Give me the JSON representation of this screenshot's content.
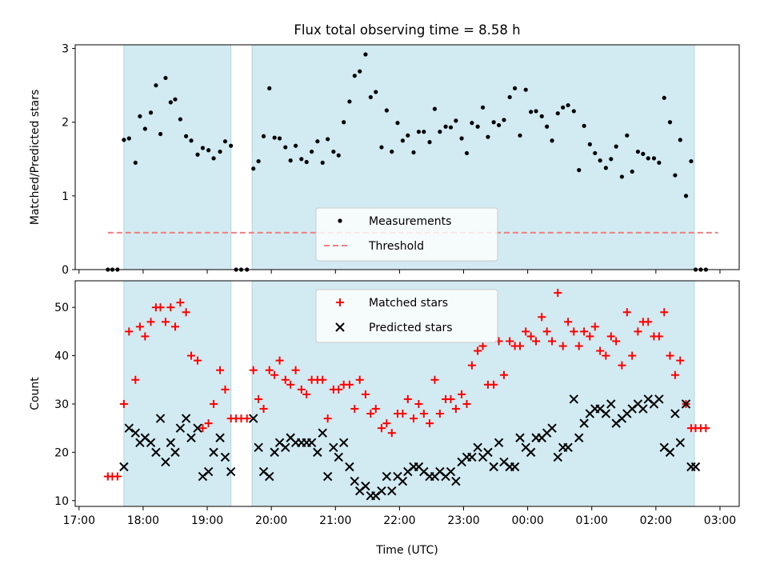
{
  "chart_data": [
    {
      "type": "scatter",
      "title": "Flux total observing time = 8.58 h",
      "xlabel": "",
      "ylabel": "Matched/Predicted stars",
      "ylim": [
        0,
        3.05
      ],
      "yticks": [
        "0",
        "1",
        "2",
        "3"
      ],
      "x_unit": "hours since 00:00 UTC (values above 24 are after midnight)",
      "xlim": [
        16.94,
        27.3
      ],
      "legend": "lower-center",
      "shaded_intervals": [
        [
          17.7,
          19.37
        ],
        [
          19.7,
          26.6
        ]
      ],
      "shade_color": "#add8e6",
      "series": [
        {
          "name": "Measurements",
          "color": "#000000",
          "marker": "dot",
          "x": [
            17.45,
            17.52,
            17.6,
            17.7,
            17.78,
            17.88,
            17.95,
            18.03,
            18.12,
            18.2,
            18.27,
            18.35,
            18.43,
            18.5,
            18.58,
            18.67,
            18.75,
            18.85,
            18.93,
            19.02,
            19.1,
            19.2,
            19.28,
            19.37,
            19.45,
            19.53,
            19.62,
            19.72,
            19.8,
            19.88,
            19.97,
            20.05,
            20.13,
            20.22,
            20.3,
            20.38,
            20.47,
            20.55,
            20.63,
            20.72,
            20.8,
            20.88,
            20.97,
            21.05,
            21.13,
            21.22,
            21.3,
            21.38,
            21.47,
            21.55,
            21.63,
            21.72,
            21.8,
            21.88,
            21.97,
            22.05,
            22.13,
            22.22,
            22.3,
            22.38,
            22.47,
            22.55,
            22.63,
            22.72,
            22.8,
            22.88,
            22.97,
            23.05,
            23.13,
            23.22,
            23.3,
            23.38,
            23.47,
            23.55,
            23.63,
            23.72,
            23.8,
            23.88,
            23.97,
            24.05,
            24.13,
            24.22,
            24.3,
            24.38,
            24.47,
            24.55,
            24.63,
            24.72,
            24.8,
            24.88,
            24.97,
            25.05,
            25.13,
            25.22,
            25.3,
            25.38,
            25.47,
            25.55,
            25.63,
            25.72,
            25.8,
            25.88,
            25.97,
            26.05,
            26.13,
            26.22,
            26.3,
            26.38,
            26.47,
            26.55,
            26.62,
            26.7,
            26.78
          ],
          "y": [
            0,
            0,
            0,
            1.76,
            1.78,
            1.45,
            2.08,
            1.91,
            2.13,
            2.5,
            1.84,
            2.6,
            2.27,
            2.31,
            2.04,
            1.81,
            1.75,
            1.56,
            1.65,
            1.62,
            1.51,
            1.6,
            1.74,
            1.68,
            0,
            0,
            0,
            1.37,
            1.47,
            1.81,
            2.46,
            1.79,
            1.78,
            1.66,
            1.48,
            1.68,
            1.5,
            1.46,
            1.6,
            1.74,
            1.45,
            1.77,
            1.6,
            1.55,
            2.0,
            2.28,
            2.63,
            2.69,
            2.92,
            2.34,
            2.41,
            1.66,
            2.16,
            1.6,
            1.99,
            1.75,
            1.82,
            1.59,
            1.87,
            1.87,
            1.73,
            2.18,
            1.87,
            1.94,
            1.93,
            2.02,
            1.78,
            1.58,
            1.99,
            1.94,
            2.2,
            1.8,
            2.0,
            1.96,
            2.03,
            2.34,
            2.46,
            1.82,
            2.44,
            2.14,
            2.15,
            2.08,
            1.94,
            1.75,
            2.12,
            2.2,
            2.23,
            2.15,
            1.35,
            1.95,
            1.7,
            1.58,
            1.48,
            1.38,
            1.5,
            1.67,
            1.26,
            1.82,
            1.33,
            1.6,
            1.57,
            1.51,
            1.51,
            1.45,
            2.33,
            2.0,
            1.28,
            1.76,
            1.0,
            1.47,
            0,
            0,
            0
          ]
        },
        {
          "name": "Threshold",
          "color": "#f08080",
          "style": "dashed",
          "x": [
            17.45,
            26.97
          ],
          "y": [
            0.5,
            0.5
          ]
        }
      ]
    },
    {
      "type": "scatter",
      "title": "",
      "xlabel": "Time (UTC)",
      "ylabel": "Count",
      "ylim": [
        8.8,
        55.5
      ],
      "yticks": [
        "10",
        "20",
        "30",
        "40",
        "50"
      ],
      "xticks": [
        "17:00",
        "18:00",
        "19:00",
        "20:00",
        "21:00",
        "22:00",
        "23:00",
        "00:00",
        "01:00",
        "02:00",
        "03:00"
      ],
      "x_unit": "hours since 00:00 UTC (values above 24 are after midnight)",
      "xlim": [
        16.94,
        27.3
      ],
      "legend": "upper-center",
      "shaded_intervals": [
        [
          17.7,
          19.37
        ],
        [
          19.7,
          26.6
        ]
      ],
      "shade_color": "#add8e6",
      "series": [
        {
          "name": "Matched stars",
          "color": "#ff0000",
          "marker": "plus",
          "x": [
            17.45,
            17.52,
            17.6,
            17.7,
            17.78,
            17.88,
            17.95,
            18.03,
            18.12,
            18.2,
            18.27,
            18.35,
            18.43,
            18.5,
            18.58,
            18.67,
            18.75,
            18.85,
            18.93,
            19.02,
            19.1,
            19.2,
            19.28,
            19.37,
            19.45,
            19.53,
            19.62,
            19.72,
            19.8,
            19.88,
            19.97,
            20.05,
            20.13,
            20.22,
            20.3,
            20.38,
            20.47,
            20.55,
            20.63,
            20.72,
            20.8,
            20.88,
            20.97,
            21.05,
            21.13,
            21.22,
            21.3,
            21.38,
            21.47,
            21.55,
            21.63,
            21.72,
            21.8,
            21.88,
            21.97,
            22.05,
            22.13,
            22.22,
            22.3,
            22.38,
            22.47,
            22.55,
            22.63,
            22.72,
            22.8,
            22.88,
            22.97,
            23.05,
            23.13,
            23.22,
            23.3,
            23.38,
            23.47,
            23.55,
            23.63,
            23.72,
            23.8,
            23.88,
            23.97,
            24.05,
            24.13,
            24.22,
            24.3,
            24.38,
            24.47,
            24.55,
            24.63,
            24.72,
            24.8,
            24.88,
            24.97,
            25.05,
            25.13,
            25.22,
            25.3,
            25.38,
            25.47,
            25.55,
            25.63,
            25.72,
            25.8,
            25.88,
            25.97,
            26.05,
            26.13,
            26.22,
            26.3,
            26.38,
            26.47,
            26.55,
            26.62,
            26.7,
            26.78
          ],
          "y": [
            15,
            15,
            15,
            30,
            45,
            35,
            46,
            44,
            47,
            50,
            50,
            47,
            50,
            46,
            51,
            49,
            40,
            39,
            25,
            26,
            30,
            37,
            33,
            27,
            27,
            27,
            27,
            37,
            31,
            29,
            37,
            36,
            39,
            35,
            34,
            37,
            33,
            32,
            35,
            35,
            35,
            27,
            33,
            33,
            34,
            34,
            29,
            35,
            32,
            28,
            29,
            25,
            26,
            24,
            28,
            28,
            31,
            27,
            30,
            28,
            26,
            35,
            28,
            31,
            31,
            29,
            32,
            30,
            38,
            41,
            42,
            34,
            34,
            43,
            36,
            43,
            42,
            42,
            45,
            44,
            43,
            48,
            45,
            43,
            53,
            42,
            47,
            45,
            42,
            45,
            44,
            46,
            41,
            40,
            44,
            43,
            38,
            49,
            40,
            45,
            47,
            47,
            44,
            44,
            49,
            40,
            36,
            39,
            30,
            25,
            25,
            25,
            25
          ]
        },
        {
          "name": "Predicted stars",
          "color": "#000000",
          "marker": "x",
          "x": [
            17.7,
            17.78,
            17.88,
            17.95,
            18.03,
            18.12,
            18.2,
            18.27,
            18.35,
            18.43,
            18.5,
            18.58,
            18.67,
            18.75,
            18.85,
            18.93,
            19.02,
            19.1,
            19.2,
            19.28,
            19.37,
            19.72,
            19.8,
            19.88,
            19.97,
            20.05,
            20.13,
            20.22,
            20.3,
            20.38,
            20.47,
            20.55,
            20.63,
            20.72,
            20.8,
            20.88,
            20.97,
            21.05,
            21.13,
            21.22,
            21.3,
            21.38,
            21.47,
            21.55,
            21.63,
            21.72,
            21.8,
            21.88,
            21.97,
            22.05,
            22.13,
            22.22,
            22.3,
            22.38,
            22.47,
            22.55,
            22.63,
            22.72,
            22.8,
            22.88,
            22.97,
            23.05,
            23.13,
            23.22,
            23.3,
            23.38,
            23.47,
            23.55,
            23.63,
            23.72,
            23.8,
            23.88,
            23.97,
            24.05,
            24.13,
            24.22,
            24.3,
            24.38,
            24.47,
            24.55,
            24.63,
            24.72,
            24.8,
            24.88,
            24.97,
            25.05,
            25.13,
            25.22,
            25.3,
            25.38,
            25.47,
            25.55,
            25.63,
            25.72,
            25.8,
            25.88,
            25.97,
            26.05,
            26.13,
            26.22,
            26.3,
            26.38,
            26.47,
            26.55,
            26.62
          ],
          "y": [
            17,
            25,
            24,
            22,
            23,
            22,
            20,
            27,
            18,
            22,
            20,
            25,
            27,
            23,
            25,
            15,
            16,
            20,
            23,
            19,
            16,
            27,
            21,
            16,
            15,
            20,
            22,
            21,
            23,
            22,
            22,
            22,
            22,
            20,
            24,
            15,
            21,
            19,
            22,
            17,
            14,
            12,
            13,
            11,
            11,
            12,
            15,
            12,
            15,
            14,
            16,
            17,
            17,
            16,
            15,
            15,
            16,
            15,
            16,
            14,
            18,
            19,
            19,
            21,
            19,
            20,
            17,
            22,
            18,
            17,
            17,
            23,
            21,
            20,
            23,
            23,
            24,
            25,
            19,
            21,
            21,
            31,
            23,
            26,
            28,
            29,
            29,
            28,
            30,
            26,
            27,
            28,
            29,
            30,
            29,
            31,
            30,
            31,
            21,
            20,
            28,
            22,
            30,
            17,
            17
          ]
        }
      ]
    }
  ]
}
